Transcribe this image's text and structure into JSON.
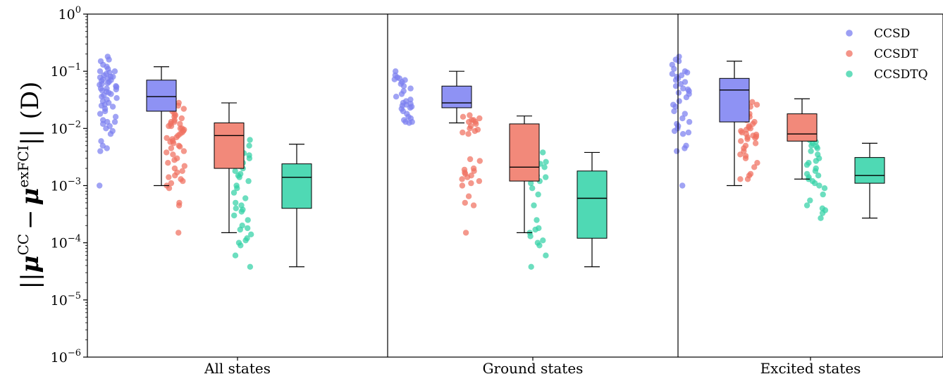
{
  "chart_data": {
    "type": "box",
    "yscale": "log",
    "ylim": [
      1e-06,
      1
    ],
    "ytick_values": [
      1e-06,
      1e-05,
      0.0001,
      0.001,
      0.01,
      0.1,
      1
    ],
    "ytick_labels": [
      {
        "base": "10",
        "exp": "−6"
      },
      {
        "base": "10",
        "exp": "−5"
      },
      {
        "base": "10",
        "exp": "−4"
      },
      {
        "base": "10",
        "exp": "−3"
      },
      {
        "base": "10",
        "exp": "−2"
      },
      {
        "base": "10",
        "exp": "−1"
      },
      {
        "base": "10",
        "exp": "0"
      }
    ],
    "ylabel": {
      "open": "||",
      "mu": "μ",
      "cc_sup": "CC",
      "minus": "−",
      "fci_sup": "exFCI",
      "close": "||",
      "unit": "(D)"
    },
    "panels": [
      "All states",
      "Ground states",
      "Excited states"
    ],
    "legend": {
      "position": "top-right",
      "entries": [
        {
          "label": "CCSD",
          "color": "#7b7ff0"
        },
        {
          "label": "CCSDT",
          "color": "#f07060"
        },
        {
          "label": "CCSDTQ",
          "color": "#33d1a6"
        }
      ]
    },
    "box_colors": [
      "#8e92f4",
      "#f2897a",
      "#4fd9b4"
    ],
    "boxes": [
      [
        {
          "series": "CCSD",
          "whislo": 0.001,
          "q1": 0.02,
          "med": 0.036,
          "q3": 0.07,
          "whishi": 0.12
        },
        {
          "series": "CCSDT",
          "whislo": 0.00015,
          "q1": 0.002,
          "med": 0.0075,
          "q3": 0.0125,
          "whishi": 0.028
        },
        {
          "series": "CCSDTQ",
          "whislo": 3.8e-05,
          "q1": 0.0004,
          "med": 0.0014,
          "q3": 0.0024,
          "whishi": 0.0053
        }
      ],
      [
        {
          "series": "CCSD",
          "whislo": 0.0125,
          "q1": 0.023,
          "med": 0.028,
          "q3": 0.055,
          "whishi": 0.1
        },
        {
          "series": "CCSDT",
          "whislo": 0.00015,
          "q1": 0.0012,
          "med": 0.0021,
          "q3": 0.012,
          "whishi": 0.0165
        },
        {
          "series": "CCSDTQ",
          "whislo": 3.8e-05,
          "q1": 0.00012,
          "med": 0.0006,
          "q3": 0.0018,
          "whishi": 0.0038
        }
      ],
      [
        {
          "series": "CCSD",
          "whislo": 0.001,
          "q1": 0.013,
          "med": 0.047,
          "q3": 0.075,
          "whishi": 0.15
        },
        {
          "series": "CCSDT",
          "whislo": 0.0013,
          "q1": 0.006,
          "med": 0.008,
          "q3": 0.018,
          "whishi": 0.033
        },
        {
          "series": "CCSDTQ",
          "whislo": 0.00027,
          "q1": 0.0011,
          "med": 0.0015,
          "q3": 0.0031,
          "whishi": 0.0055
        }
      ]
    ],
    "points": [
      [
        [
          0.18,
          0.16,
          0.15,
          0.13,
          0.12,
          0.11,
          0.1,
          0.1,
          0.095,
          0.09,
          0.085,
          0.08,
          0.08,
          0.078,
          0.075,
          0.072,
          0.07,
          0.068,
          0.065,
          0.062,
          0.06,
          0.058,
          0.055,
          0.053,
          0.05,
          0.05,
          0.048,
          0.046,
          0.044,
          0.042,
          0.04,
          0.038,
          0.036,
          0.034,
          0.032,
          0.03,
          0.028,
          0.026,
          0.025,
          0.024,
          0.022,
          0.02,
          0.018,
          0.016,
          0.014,
          0.013,
          0.013,
          0.012,
          0.011,
          0.01,
          0.009,
          0.008,
          0.006,
          0.005,
          0.0045,
          0.004,
          0.001
        ],
        [
          0.033,
          0.028,
          0.025,
          0.022,
          0.02,
          0.018,
          0.017,
          0.016,
          0.015,
          0.014,
          0.013,
          0.013,
          0.012,
          0.012,
          0.011,
          0.011,
          0.01,
          0.01,
          0.0095,
          0.009,
          0.0085,
          0.008,
          0.0075,
          0.007,
          0.0068,
          0.0065,
          0.006,
          0.0058,
          0.0055,
          0.005,
          0.0048,
          0.0045,
          0.004,
          0.0038,
          0.0035,
          0.003,
          0.0028,
          0.0025,
          0.0022,
          0.002,
          0.0018,
          0.0017,
          0.0015,
          0.0014,
          0.0013,
          0.0012,
          0.0011,
          0.001,
          0.0009,
          0.0005,
          0.00045,
          0.00015
        ],
        [
          0.0063,
          0.0056,
          0.005,
          0.0048,
          0.0045,
          0.0042,
          0.004,
          0.0037,
          0.0034,
          0.003,
          0.0027,
          0.0025,
          0.0024,
          0.0022,
          0.002,
          0.0018,
          0.0016,
          0.0015,
          0.0014,
          0.0012,
          0.001,
          0.0009,
          0.00075,
          0.0006,
          0.0005,
          0.00045,
          0.0004,
          0.00038,
          0.00035,
          0.0003,
          0.00025,
          0.0002,
          0.00018,
          0.00017,
          0.00014,
          0.00012,
          0.00011,
          0.0001,
          9e-05,
          6e-05,
          3.8e-05
        ]
      ],
      [
        [
          0.1,
          0.085,
          0.078,
          0.075,
          0.072,
          0.07,
          0.065,
          0.06,
          0.055,
          0.05,
          0.045,
          0.04,
          0.036,
          0.032,
          0.03,
          0.028,
          0.027,
          0.026,
          0.025,
          0.024,
          0.023,
          0.022,
          0.02,
          0.018,
          0.016,
          0.015,
          0.014,
          0.013,
          0.013,
          0.0125
        ],
        [
          0.017,
          0.016,
          0.015,
          0.014,
          0.014,
          0.013,
          0.013,
          0.012,
          0.011,
          0.01,
          0.0095,
          0.009,
          0.0085,
          0.008,
          0.0029,
          0.0027,
          0.002,
          0.0019,
          0.0018,
          0.0017,
          0.0016,
          0.0015,
          0.0014,
          0.0013,
          0.0012,
          0.0011,
          0.001,
          0.00065,
          0.0005,
          0.00045,
          0.00015
        ],
        [
          0.0038,
          0.0029,
          0.0026,
          0.0024,
          0.0023,
          0.0021,
          0.0019,
          0.0016,
          0.0015,
          0.0014,
          0.0012,
          0.0011,
          0.0009,
          0.0007,
          0.00045,
          0.00025,
          0.00018,
          0.00017,
          0.00015,
          0.00013,
          0.00011,
          0.0001,
          9e-05,
          6e-05,
          3.8e-05
        ]
      ],
      [
        [
          0.18,
          0.16,
          0.15,
          0.13,
          0.11,
          0.1,
          0.095,
          0.09,
          0.085,
          0.08,
          0.075,
          0.07,
          0.065,
          0.06,
          0.055,
          0.05,
          0.048,
          0.045,
          0.042,
          0.04,
          0.035,
          0.03,
          0.026,
          0.024,
          0.02,
          0.018,
          0.015,
          0.013,
          0.012,
          0.011,
          0.01,
          0.009,
          0.0085,
          0.008,
          0.005,
          0.0045,
          0.004,
          0.001
        ],
        [
          0.033,
          0.029,
          0.026,
          0.024,
          0.022,
          0.02,
          0.018,
          0.016,
          0.015,
          0.014,
          0.013,
          0.012,
          0.011,
          0.0105,
          0.01,
          0.0095,
          0.009,
          0.0085,
          0.008,
          0.0078,
          0.0075,
          0.0072,
          0.007,
          0.0068,
          0.0065,
          0.006,
          0.0055,
          0.005,
          0.0045,
          0.004,
          0.0035,
          0.0033,
          0.003,
          0.0025,
          0.0021,
          0.0016,
          0.0015,
          0.0013,
          0.0013
        ],
        [
          0.0062,
          0.0058,
          0.0055,
          0.005,
          0.0048,
          0.0045,
          0.004,
          0.0035,
          0.003,
          0.0027,
          0.0025,
          0.0023,
          0.002,
          0.0018,
          0.0016,
          0.0015,
          0.0014,
          0.0013,
          0.0012,
          0.0011,
          0.001,
          0.0009,
          0.0007,
          0.00055,
          0.00045,
          0.0004,
          0.00037,
          0.00033,
          0.00027
        ]
      ]
    ]
  }
}
